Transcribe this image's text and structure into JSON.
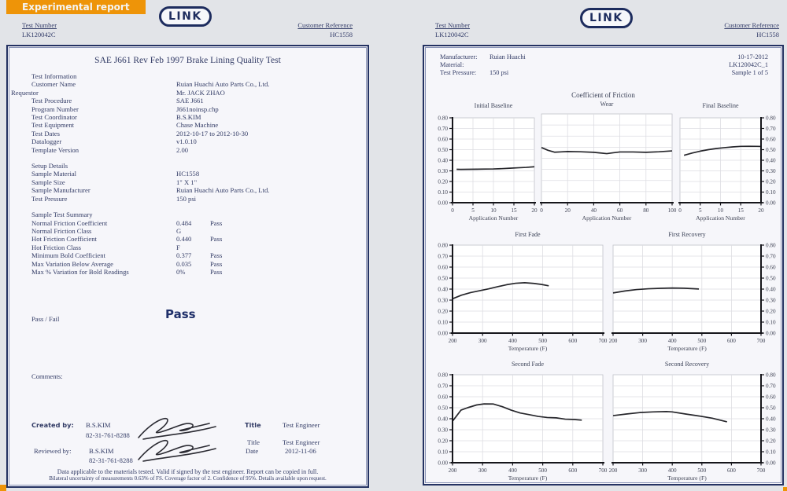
{
  "banner": {
    "label": "Experimental report"
  },
  "logo": {
    "text": "LINK"
  },
  "colors": {
    "accent_orange": "#ee9408",
    "navy": "#1d2c5e",
    "text_navy": "#333c66"
  },
  "left_header": {
    "test_number_label": "Test Number",
    "test_number": "LK120042C",
    "customer_reference_label": "Customer Reference",
    "customer_reference": "HC1558"
  },
  "right_header": {
    "test_number_label": "Test Number",
    "test_number": "LK120042C",
    "customer_reference_label": "Customer Reference",
    "customer_reference": "HC1558"
  },
  "left_page": {
    "title": "SAE J661 Rev Feb 1997 Brake Lining Quality Test",
    "info_rows": [
      {
        "label": "Test Information",
        "section": true
      },
      {
        "label": "Customer Name",
        "value": "Ruian Huachi Auto Parts Co., Ltd."
      },
      {
        "label": "Requestor",
        "value": "Mr. JACK ZHAO",
        "outdent": true
      },
      {
        "label": "Test Procedure",
        "value": "SAE J661"
      },
      {
        "label": "Program Number",
        "value": "J661noinsp.chp"
      },
      {
        "label": "Test Coordinator",
        "value": "B.S.KIM"
      },
      {
        "label": "Test Equipment",
        "value": "Chase Machine"
      },
      {
        "label": "Test Dates",
        "value": "2012-10-17 to 2012-10-30"
      },
      {
        "label": "Datalogger",
        "value": "v1.0.10"
      },
      {
        "label": "Template Version",
        "value": "2.00"
      },
      {
        "label": "Setup Details",
        "section": true,
        "gap": true
      },
      {
        "label": "Sample Material",
        "value": "HC1558"
      },
      {
        "label": "Sample Size",
        "value": "1\" X 1\""
      },
      {
        "label": "Sample Manufacturer",
        "value": "Ruian Huachi Auto Parts Co., Ltd."
      },
      {
        "label": "Test Pressure",
        "value": "150 psi"
      },
      {
        "label": "Sample Test Summary",
        "section": true,
        "gap": true
      },
      {
        "label": "Normal Friction Coefficient",
        "value": "0.484",
        "status": "Pass"
      },
      {
        "label": "Normal Friction Class",
        "value": "G"
      },
      {
        "label": "Hot Friction Coefficient",
        "value": "0.440",
        "status": "Pass"
      },
      {
        "label": "Hot Friction Class",
        "value": "F"
      },
      {
        "label": "Minimum Bold Coefficient",
        "value": "0.377",
        "status": "Pass"
      },
      {
        "label": "Max Variation Below Average",
        "value": "0.035",
        "status": "Pass"
      },
      {
        "label": "Max % Variation for Bold Readings",
        "value": "0%",
        "status": "Pass"
      }
    ],
    "passfail_label": "Pass / Fail",
    "passfail_value": "Pass",
    "comments_label": "Comments:",
    "signatures": {
      "created_label": "Created by:",
      "created_name": "B.S.KIM",
      "created_phone": "82-31-761-8288",
      "created_title_label": "Title",
      "created_title": "Test Engineer",
      "reviewed_label": "Reviewed by:",
      "reviewed_name": "B.S.KIM",
      "reviewed_phone": "82-31-761-8288",
      "reviewed_title_label": "Title",
      "reviewed_title": "Test Engineer",
      "date_label": "Date",
      "date": "2012-11-06"
    },
    "footer_line1": "Data applicable to the materials tested. Valid if signed by the test engineer.  Report can be copied in full.",
    "footer_line2": "Bilateral uncertainty of measurements 0.63% of FS.  Coverage factor of 2.  Confidence of 95%.  Details available upon request."
  },
  "right_page": {
    "info": {
      "manufacturer_label": "Manufacturer:",
      "manufacturer": "Ruian Huachi",
      "material_label": "Material:",
      "material": "",
      "pressure_label": "Test Pressure:",
      "pressure": "150 psi",
      "date": "10-17-2012",
      "sample_id": "LK120042C_1",
      "sample_of": "Sample 1 of 5"
    },
    "section_title": "Coefficient of Friction"
  },
  "chart_data": [
    {
      "type": "line",
      "title": "Initial Baseline",
      "xlabel": "Application Number",
      "xlim": [
        0,
        20
      ],
      "ylim": [
        0,
        0.8
      ],
      "x_ticks": [
        0,
        5,
        10,
        15,
        20
      ],
      "y_ticks": [
        0,
        0.1,
        0.2,
        0.3,
        0.4,
        0.5,
        0.6,
        0.7,
        0.8
      ],
      "y_axis_side": "left",
      "grid": true,
      "legend": "none",
      "points": [
        [
          1,
          0.315
        ],
        [
          2,
          0.314
        ],
        [
          4,
          0.315
        ],
        [
          6,
          0.316
        ],
        [
          8,
          0.317
        ],
        [
          10,
          0.318
        ],
        [
          12,
          0.321
        ],
        [
          14,
          0.325
        ],
        [
          16,
          0.329
        ],
        [
          18,
          0.333
        ],
        [
          20,
          0.339
        ]
      ]
    },
    {
      "type": "line",
      "title": "Wear",
      "xlabel": "Application Number",
      "xlim": [
        0,
        100
      ],
      "ylim": [
        0,
        0.8
      ],
      "x_ticks": [
        0,
        20,
        40,
        60,
        80,
        100
      ],
      "y_ticks": [
        0,
        0.1,
        0.2,
        0.3,
        0.4,
        0.5,
        0.6,
        0.7,
        0.8
      ],
      "y_axis_side": "none",
      "grid": true,
      "legend": "none",
      "points": [
        [
          0,
          0.497
        ],
        [
          5,
          0.472
        ],
        [
          10,
          0.455
        ],
        [
          15,
          0.458
        ],
        [
          20,
          0.461
        ],
        [
          30,
          0.459
        ],
        [
          40,
          0.454
        ],
        [
          50,
          0.442
        ],
        [
          55,
          0.45
        ],
        [
          60,
          0.457
        ],
        [
          70,
          0.457
        ],
        [
          80,
          0.454
        ],
        [
          90,
          0.459
        ],
        [
          100,
          0.467
        ]
      ]
    },
    {
      "type": "line",
      "title": "Final Baseline",
      "xlabel": "Application Number",
      "xlim": [
        0,
        20
      ],
      "ylim": [
        0,
        0.8
      ],
      "x_ticks": [
        0,
        5,
        10,
        15,
        20
      ],
      "y_ticks": [
        0,
        0.1,
        0.2,
        0.3,
        0.4,
        0.5,
        0.6,
        0.7,
        0.8
      ],
      "y_axis_side": "right",
      "grid": true,
      "legend": "none",
      "points": [
        [
          1,
          0.447
        ],
        [
          3,
          0.468
        ],
        [
          5,
          0.486
        ],
        [
          7,
          0.5
        ],
        [
          9,
          0.511
        ],
        [
          11,
          0.519
        ],
        [
          13,
          0.526
        ],
        [
          15,
          0.531
        ],
        [
          17,
          0.532
        ],
        [
          19,
          0.531
        ],
        [
          20,
          0.53
        ]
      ]
    },
    {
      "type": "line",
      "title": "First Fade",
      "xlabel": "Temperature (F)",
      "xlim": [
        200,
        700
      ],
      "ylim": [
        0,
        0.8
      ],
      "x_ticks": [
        200,
        300,
        400,
        500,
        600,
        700
      ],
      "y_ticks": [
        0,
        0.1,
        0.2,
        0.3,
        0.4,
        0.5,
        0.6,
        0.7,
        0.8
      ],
      "y_axis_side": "left",
      "grid": true,
      "legend": "none",
      "points": [
        [
          200,
          0.312
        ],
        [
          230,
          0.345
        ],
        [
          260,
          0.368
        ],
        [
          290,
          0.385
        ],
        [
          320,
          0.402
        ],
        [
          350,
          0.422
        ],
        [
          380,
          0.44
        ],
        [
          410,
          0.453
        ],
        [
          440,
          0.458
        ],
        [
          470,
          0.452
        ],
        [
          495,
          0.443
        ],
        [
          520,
          0.43
        ]
      ]
    },
    {
      "type": "line",
      "title": "First Recovery",
      "xlabel": "Temperature (F)",
      "xlim": [
        200,
        700
      ],
      "ylim": [
        0,
        0.8
      ],
      "x_ticks": [
        200,
        300,
        400,
        500,
        600,
        700
      ],
      "y_ticks": [
        0,
        0.1,
        0.2,
        0.3,
        0.4,
        0.5,
        0.6,
        0.7,
        0.8
      ],
      "y_axis_side": "right",
      "grid": true,
      "legend": "none",
      "points": [
        [
          200,
          0.365
        ],
        [
          240,
          0.383
        ],
        [
          280,
          0.396
        ],
        [
          320,
          0.403
        ],
        [
          360,
          0.407
        ],
        [
          400,
          0.41
        ],
        [
          440,
          0.408
        ],
        [
          490,
          0.401
        ]
      ]
    },
    {
      "type": "line",
      "title": "Second Fade",
      "xlabel": "Temperature (F)",
      "xlim": [
        200,
        700
      ],
      "ylim": [
        0,
        0.8
      ],
      "x_ticks": [
        200,
        300,
        400,
        500,
        600,
        700
      ],
      "y_ticks": [
        0,
        0.1,
        0.2,
        0.3,
        0.4,
        0.5,
        0.6,
        0.7,
        0.8
      ],
      "y_axis_side": "left",
      "grid": true,
      "legend": "none",
      "points": [
        [
          200,
          0.378
        ],
        [
          212,
          0.42
        ],
        [
          228,
          0.478
        ],
        [
          250,
          0.5
        ],
        [
          280,
          0.525
        ],
        [
          305,
          0.535
        ],
        [
          335,
          0.534
        ],
        [
          365,
          0.51
        ],
        [
          395,
          0.478
        ],
        [
          425,
          0.452
        ],
        [
          455,
          0.437
        ],
        [
          485,
          0.421
        ],
        [
          515,
          0.411
        ],
        [
          545,
          0.408
        ],
        [
          575,
          0.396
        ],
        [
          605,
          0.393
        ],
        [
          630,
          0.387
        ]
      ]
    },
    {
      "type": "line",
      "title": "Second Recovery",
      "xlabel": "Temperature (F)",
      "xlim": [
        200,
        700
      ],
      "ylim": [
        0,
        0.8
      ],
      "x_ticks": [
        200,
        300,
        400,
        500,
        600,
        700
      ],
      "y_ticks": [
        0,
        0.1,
        0.2,
        0.3,
        0.4,
        0.5,
        0.6,
        0.7,
        0.8
      ],
      "y_axis_side": "right",
      "grid": true,
      "legend": "none",
      "points": [
        [
          200,
          0.428
        ],
        [
          245,
          0.443
        ],
        [
          290,
          0.456
        ],
        [
          335,
          0.462
        ],
        [
          380,
          0.465
        ],
        [
          400,
          0.462
        ],
        [
          445,
          0.443
        ],
        [
          490,
          0.425
        ],
        [
          535,
          0.405
        ],
        [
          585,
          0.372
        ]
      ]
    }
  ]
}
